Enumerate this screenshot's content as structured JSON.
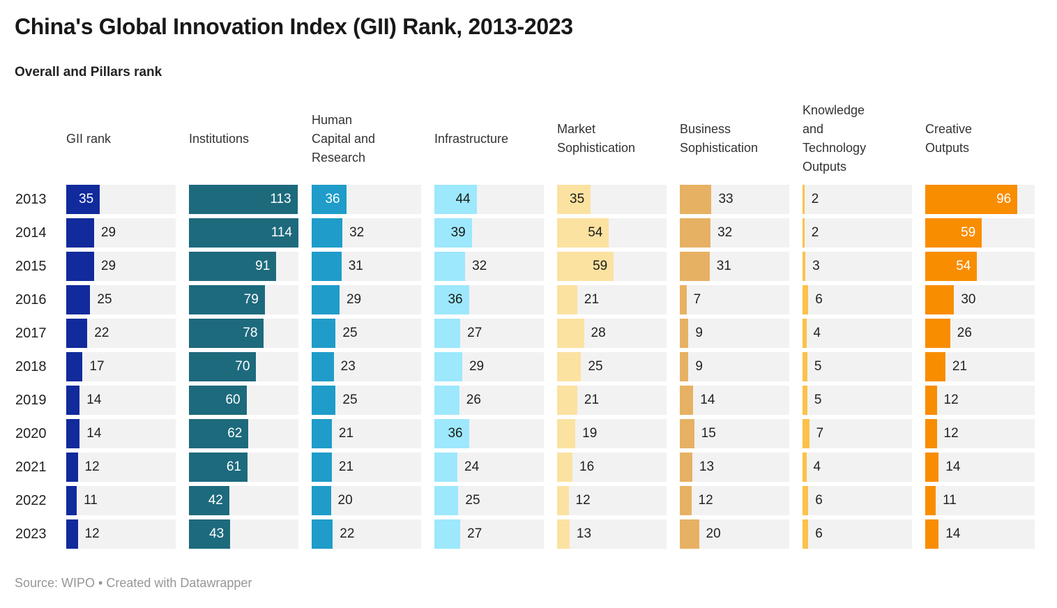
{
  "title": "China's Global Innovation Index (GII) Rank, 2013-2023",
  "subtitle": "Overall and Pillars rank",
  "source_note": "Source: WIPO • Created with Datawrapper",
  "colors": {
    "track_background": "#f2f2f2",
    "page_background": "#ffffff",
    "outside_label": "#222222",
    "header_text": "#333333",
    "source_text": "#969696"
  },
  "chart_data": {
    "type": "bar",
    "layout": "bar table: one bar column per pillar, rows are years, shared x scale, grid off, no legend",
    "title": "China's Global Innovation Index (GII) Rank, 2013-2023",
    "subtitle": "Overall and Pillars rank",
    "x_max": 114,
    "label_inside_min_value": 34,
    "categories": [
      "2013",
      "2014",
      "2015",
      "2016",
      "2017",
      "2018",
      "2019",
      "2020",
      "2021",
      "2022",
      "2023"
    ],
    "series": [
      {
        "name": "GII rank",
        "header_lines": [
          "GII rank"
        ],
        "color": "#112a9c",
        "inside_label_color": "#ffffff",
        "values": [
          35,
          29,
          29,
          25,
          22,
          17,
          14,
          14,
          12,
          11,
          12
        ]
      },
      {
        "name": "Institutions",
        "header_lines": [
          "Institutions"
        ],
        "color": "#1d6a7d",
        "inside_label_color": "#ffffff",
        "values": [
          113,
          114,
          91,
          79,
          78,
          70,
          60,
          62,
          61,
          42,
          43
        ]
      },
      {
        "name": "Human Capital and Research",
        "header_lines": [
          "Human",
          "Capital and",
          "Research"
        ],
        "color": "#1f9cc9",
        "inside_label_color": "#ffffff",
        "values": [
          36,
          32,
          31,
          29,
          25,
          23,
          25,
          21,
          21,
          20,
          22
        ]
      },
      {
        "name": "Infrastructure",
        "header_lines": [
          "Infrastructure"
        ],
        "color": "#9de8fc",
        "inside_label_color": "#1a1a1a",
        "values": [
          44,
          39,
          32,
          36,
          27,
          29,
          26,
          36,
          24,
          25,
          27
        ]
      },
      {
        "name": "Market Sophistication",
        "header_lines": [
          "Market",
          "Sophistication"
        ],
        "color": "#fbe2a1",
        "inside_label_color": "#1a1a1a",
        "values": [
          35,
          54,
          59,
          21,
          28,
          25,
          21,
          19,
          16,
          12,
          13
        ]
      },
      {
        "name": "Business Sophistication",
        "header_lines": [
          "Business",
          "Sophistication"
        ],
        "color": "#e7b163",
        "inside_label_color": "#1a1a1a",
        "values": [
          33,
          32,
          31,
          7,
          9,
          9,
          14,
          15,
          13,
          12,
          20
        ]
      },
      {
        "name": "Knowledge and Technology Outputs",
        "header_lines": [
          "Knowledge",
          "and",
          "Technology",
          "Outputs"
        ],
        "color": "#fbc24a",
        "inside_label_color": "#1a1a1a",
        "values": [
          2,
          2,
          3,
          6,
          4,
          5,
          5,
          7,
          4,
          6,
          6
        ]
      },
      {
        "name": "Creative Outputs",
        "header_lines": [
          "Creative",
          "Outputs"
        ],
        "color": "#f98d00",
        "inside_label_color": "#ffffff",
        "values": [
          96,
          59,
          54,
          30,
          26,
          21,
          12,
          12,
          14,
          11,
          14
        ]
      }
    ]
  }
}
